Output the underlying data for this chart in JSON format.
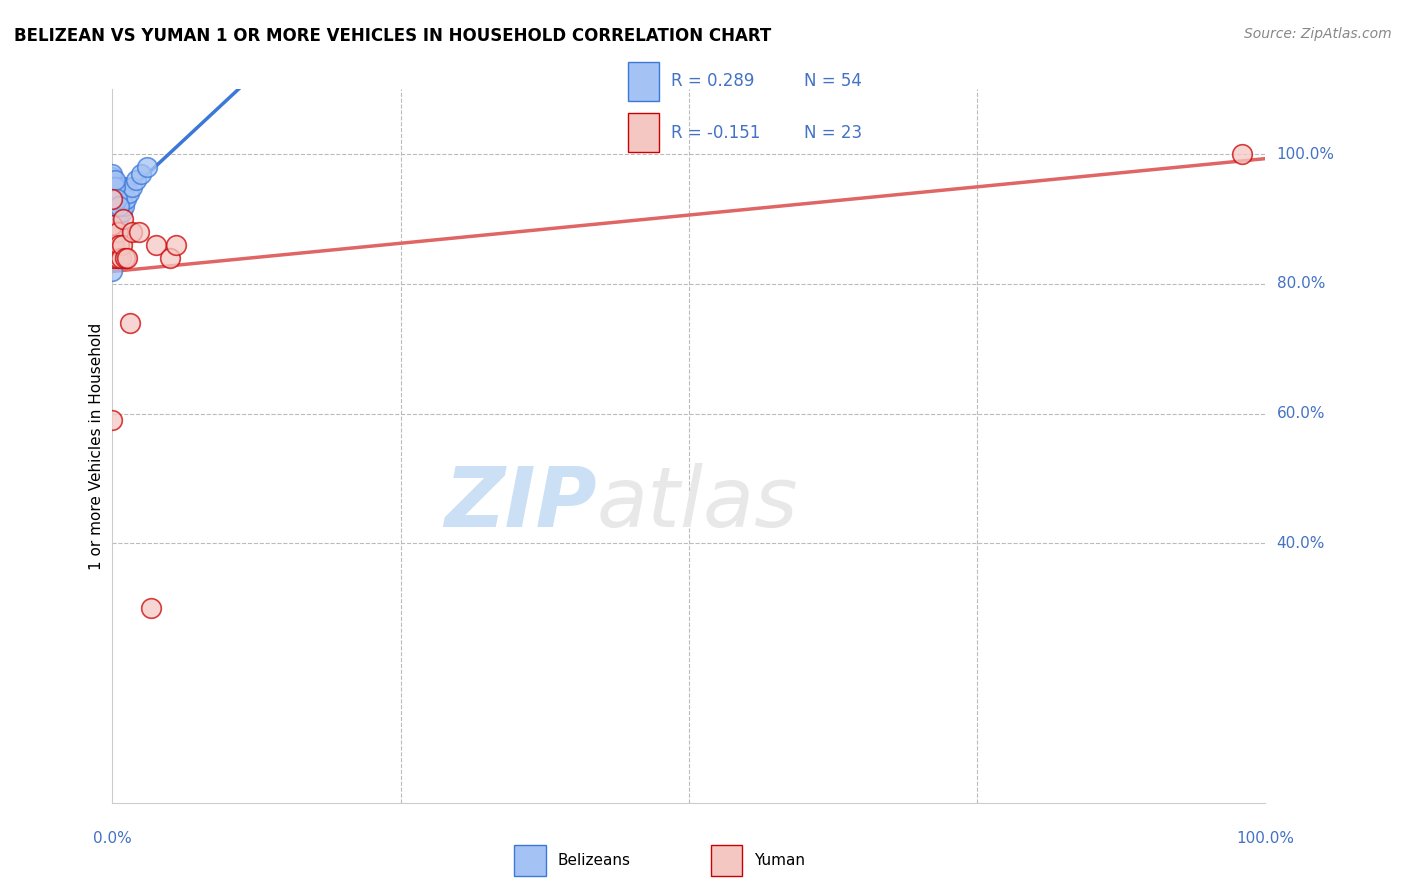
{
  "title": "BELIZEAN VS YUMAN 1 OR MORE VEHICLES IN HOUSEHOLD CORRELATION CHART",
  "source": "Source: ZipAtlas.com",
  "ylabel": "1 or more Vehicles in Household",
  "blue_color": "#a4c2f4",
  "pink_color": "#f4c7c3",
  "blue_line_color": "#3c78d8",
  "pink_line_color": "#e06666",
  "blue_edge_color": "#3c78d8",
  "pink_edge_color": "#cc0000",
  "label_color": "#4472c4",
  "grid_color": "#bbbbbb",
  "watermark_color": "#cce0f5",
  "legend_R_blue": "R = 0.289",
  "legend_N_blue": "N = 54",
  "legend_R_pink": "R = -0.151",
  "legend_N_pink": "N = 23",
  "belizean_x": [
    0.0,
    0.0,
    0.0,
    0.0,
    0.0,
    0.0,
    0.0,
    0.0,
    0.0,
    0.0,
    0.0,
    0.0,
    0.0,
    0.0,
    0.0,
    0.0,
    0.0,
    0.0,
    0.0,
    0.0,
    0.0,
    0.001,
    0.001,
    0.001,
    0.002,
    0.002,
    0.002,
    0.003,
    0.003,
    0.003,
    0.004,
    0.004,
    0.005,
    0.005,
    0.005,
    0.005,
    0.006,
    0.007,
    0.008,
    0.008,
    0.01,
    0.01,
    0.012,
    0.014,
    0.017,
    0.02,
    0.025,
    0.03,
    0.001,
    0.001,
    0.002,
    0.002,
    0.004,
    0.006
  ],
  "belizean_y": [
    0.82,
    0.84,
    0.86,
    0.88,
    0.9,
    0.905,
    0.91,
    0.92,
    0.93,
    0.935,
    0.94,
    0.942,
    0.945,
    0.947,
    0.95,
    0.952,
    0.955,
    0.958,
    0.96,
    0.965,
    0.97,
    0.88,
    0.9,
    0.95,
    0.9,
    0.92,
    0.93,
    0.88,
    0.9,
    0.93,
    0.91,
    0.93,
    0.9,
    0.92,
    0.93,
    0.95,
    0.91,
    0.92,
    0.91,
    0.93,
    0.92,
    0.95,
    0.93,
    0.94,
    0.95,
    0.96,
    0.97,
    0.98,
    0.92,
    0.95,
    0.95,
    0.96,
    0.93,
    0.92
  ],
  "yuman_x": [
    0.0,
    0.0,
    0.0,
    0.0,
    0.0,
    0.001,
    0.001,
    0.005,
    0.005,
    0.006,
    0.007,
    0.008,
    0.009,
    0.011,
    0.013,
    0.015,
    0.017,
    0.023,
    0.033,
    0.038,
    0.05,
    0.055,
    0.98
  ],
  "yuman_y": [
    0.59,
    0.85,
    0.88,
    0.89,
    0.93,
    0.84,
    0.86,
    0.84,
    0.88,
    0.86,
    0.84,
    0.86,
    0.9,
    0.84,
    0.84,
    0.74,
    0.88,
    0.88,
    0.3,
    0.86,
    0.84,
    0.86,
    1.0
  ],
  "xlim": [
    0.0,
    1.0
  ],
  "ylim": [
    0.0,
    1.1
  ],
  "xgrid": [
    0.25,
    0.5,
    0.75
  ],
  "ygrid": [
    0.4,
    0.6,
    0.8,
    1.0
  ],
  "ytick_vals": [
    0.4,
    0.6,
    0.8,
    1.0
  ],
  "ytick_labels": [
    "40.0%",
    "60.0%",
    "80.0%",
    "100.0%"
  ]
}
